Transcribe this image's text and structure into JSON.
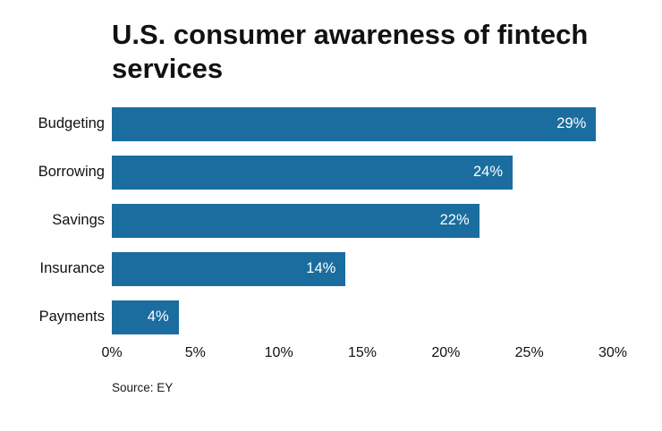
{
  "chart_data": {
    "type": "bar",
    "orientation": "horizontal",
    "title": "U.S. consumer awareness of fintech services",
    "categories": [
      "Budgeting",
      "Borrowing",
      "Savings",
      "Insurance",
      "Payments"
    ],
    "values": [
      29,
      24,
      22,
      14,
      4
    ],
    "value_labels": [
      "29%",
      "24%",
      "22%",
      "14%",
      "4%"
    ],
    "xlim": [
      0,
      30
    ],
    "x_ticks": [
      "0%",
      "5%",
      "10%",
      "15%",
      "20%",
      "25%",
      "30%"
    ],
    "x_tick_values": [
      0,
      5,
      10,
      15,
      20,
      25,
      30
    ],
    "grid": false,
    "legend": "none",
    "bar_color": "#1a6d9e",
    "source": "Source: EY"
  }
}
